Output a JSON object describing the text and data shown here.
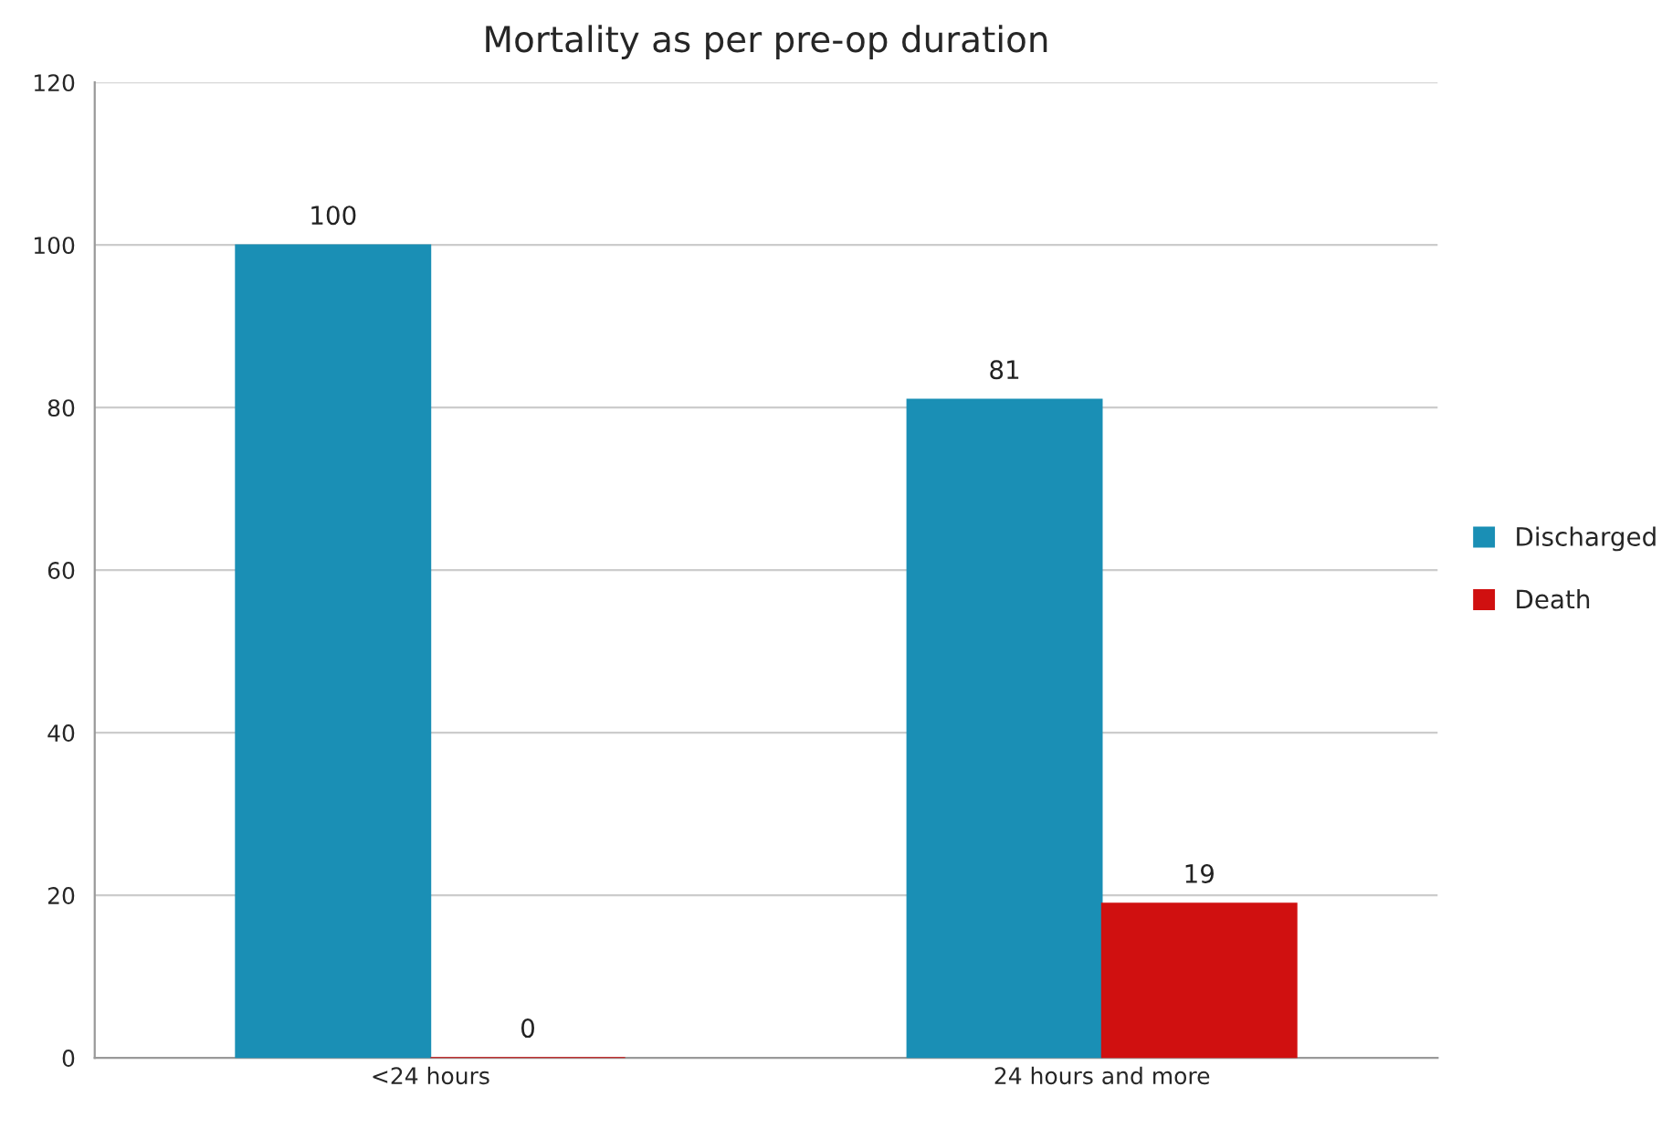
{
  "chart_data": {
    "type": "bar",
    "title": "Mortality as per pre-op duration",
    "categories": [
      "<24 hours",
      "24 hours and more"
    ],
    "series": [
      {
        "name": "Discharged",
        "color": "#1a8fb5",
        "values": [
          100,
          81
        ]
      },
      {
        "name": "Death",
        "color": "#d01010",
        "values": [
          0,
          19
        ]
      }
    ],
    "ylim": [
      0,
      120
    ],
    "yticks": [
      0,
      20,
      40,
      60,
      80,
      100,
      120
    ],
    "grid": "y",
    "legend": "right",
    "data_labels": true
  }
}
